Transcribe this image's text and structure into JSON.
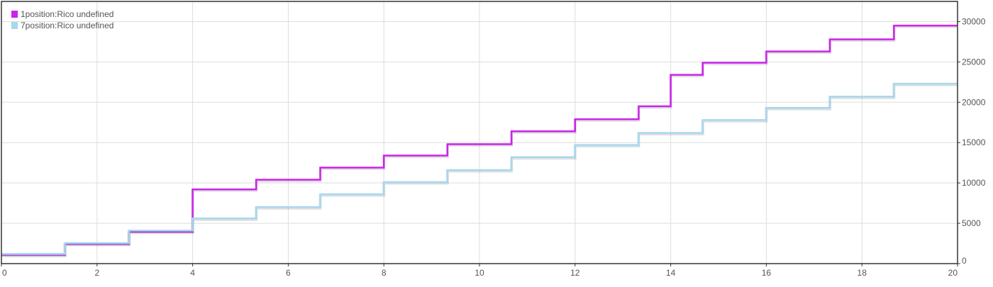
{
  "chart_data": {
    "type": "line",
    "step": "after",
    "x_ticks": [
      0,
      2,
      4,
      6,
      8,
      10,
      12,
      14,
      16,
      18,
      20
    ],
    "y_ticks": [
      0,
      5000,
      10000,
      15000,
      20000,
      25000,
      30000
    ],
    "xlim": [
      0,
      20
    ],
    "ylim": [
      0,
      32500
    ],
    "grid": true,
    "legend": "top-left",
    "y_axis_position": "right",
    "series": [
      {
        "name": "1position:Rico undefined",
        "color": "#cc22ee",
        "x": [
          0,
          1.33,
          2.67,
          4,
          5.33,
          6.67,
          8,
          9.33,
          10.67,
          12,
          13.33,
          14,
          14.67,
          16,
          17.33,
          18.67,
          20
        ],
        "y": [
          1100,
          2450,
          3950,
          9200,
          10400,
          11900,
          13400,
          14800,
          16400,
          17900,
          19500,
          23400,
          24900,
          26300,
          27800,
          29500,
          29500
        ]
      },
      {
        "name": "7position:Rico undefined",
        "color": "#a6d8f0",
        "x": [
          0,
          1.33,
          2.67,
          4,
          5.33,
          6.67,
          8,
          9.33,
          10.67,
          12,
          13.33,
          14.67,
          16,
          17.33,
          18.67,
          20
        ],
        "y": [
          1200,
          2550,
          4100,
          5600,
          7000,
          8600,
          10100,
          11600,
          13200,
          14700,
          16200,
          17800,
          19300,
          20700,
          22300,
          22300
        ]
      }
    ]
  }
}
